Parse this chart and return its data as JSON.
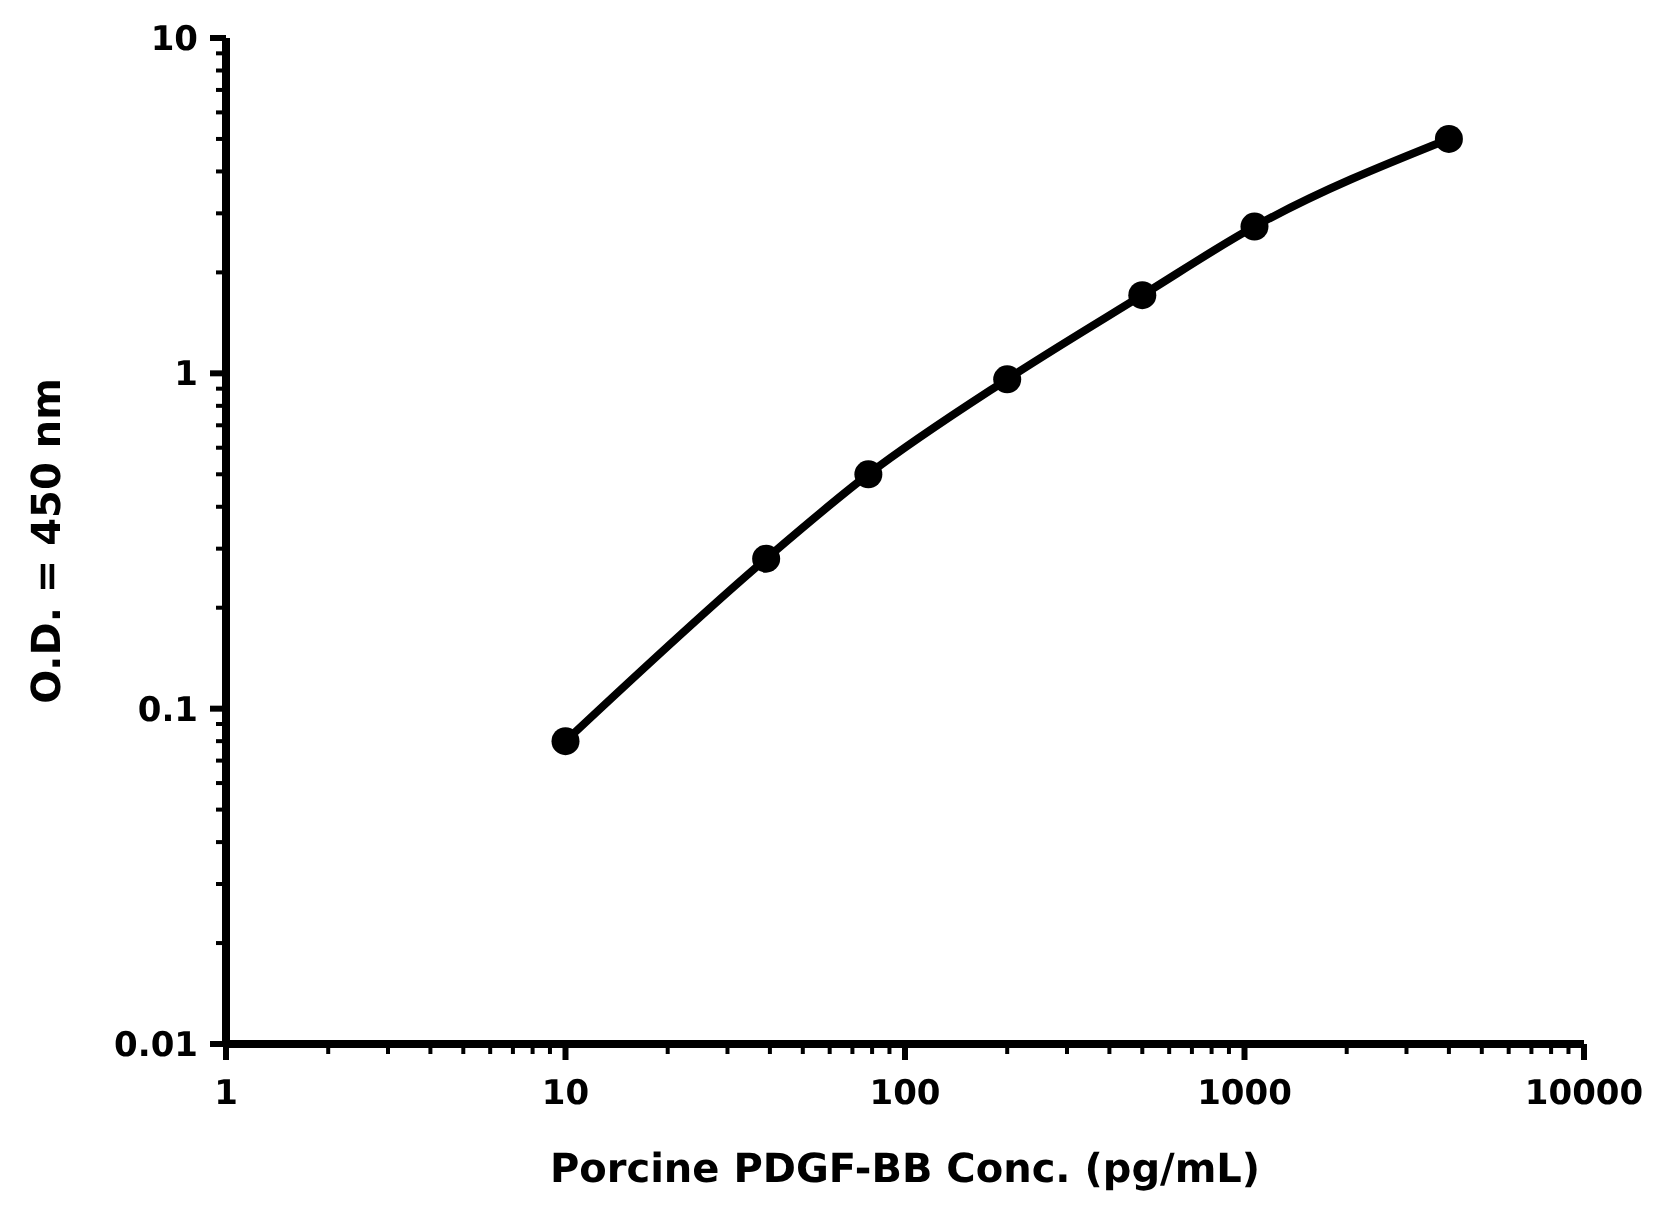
{
  "chart_data": {
    "type": "line",
    "xlabel": "Porcine PDGF-BB Conc. (pg/mL)",
    "ylabel": "O.D. = 450 nm",
    "x": [
      10,
      39,
      78,
      200,
      500,
      1070,
      4000
    ],
    "series": [
      {
        "color": "#000000",
        "values": [
          0.08,
          0.28,
          0.5,
          0.96,
          1.71,
          2.74,
          5.0
        ]
      }
    ],
    "log": "xy",
    "marker": "circle",
    "line_style": "solid",
    "xlim": [
      1,
      10000
    ],
    "xticks": [
      1,
      {
        "value": 2,
        "label": null
      },
      {
        "value": 3,
        "label": null
      },
      {
        "value": 4,
        "label": null
      },
      {
        "value": 5,
        "label": null
      },
      {
        "value": 6,
        "label": null
      },
      {
        "value": 7,
        "label": null
      },
      {
        "value": 8,
        "label": null
      },
      {
        "value": 9,
        "label": null
      },
      10,
      {
        "value": 20,
        "label": null
      },
      {
        "value": 30,
        "label": null
      },
      {
        "value": 40,
        "label": null
      },
      {
        "value": 50,
        "label": null
      },
      {
        "value": 60,
        "label": null
      },
      {
        "value": 70,
        "label": null
      },
      {
        "value": 80,
        "label": null
      },
      {
        "value": 90,
        "label": null
      },
      100,
      {
        "value": 200,
        "label": null
      },
      {
        "value": 300,
        "label": null
      },
      {
        "value": 400,
        "label": null
      },
      {
        "value": 500,
        "label": null
      },
      {
        "value": 600,
        "label": null
      },
      {
        "value": 700,
        "label": null
      },
      {
        "value": 800,
        "label": null
      },
      {
        "value": 900,
        "label": null
      },
      1000,
      {
        "value": 2000,
        "label": null
      },
      {
        "value": 3000,
        "label": null
      },
      {
        "value": 4000,
        "label": null
      },
      {
        "value": 5000,
        "label": null
      },
      {
        "value": 6000,
        "label": null
      },
      {
        "value": 7000,
        "label": null
      },
      {
        "value": 8000,
        "label": null
      },
      {
        "value": 9000,
        "label": null
      },
      10000
    ],
    "ylim": [
      0.01,
      10
    ],
    "yticks": [
      0.01,
      {
        "value": 0.02,
        "label": null
      },
      {
        "value": 0.03,
        "label": null
      },
      {
        "value": 0.04,
        "label": null
      },
      {
        "value": 0.05,
        "label": null
      },
      {
        "value": 0.06,
        "label": null
      },
      {
        "value": 0.07,
        "label": null
      },
      {
        "value": 0.08,
        "label": null
      },
      {
        "value": 0.09,
        "label": null
      },
      0.1,
      {
        "value": 0.2,
        "label": null
      },
      {
        "value": 0.3,
        "label": null
      },
      {
        "value": 0.4,
        "label": null
      },
      {
        "value": 0.5,
        "label": null
      },
      {
        "value": 0.6,
        "label": null
      },
      {
        "value": 0.7,
        "label": null
      },
      {
        "value": 0.8,
        "label": null
      },
      {
        "value": 0.9,
        "label": null
      },
      1,
      {
        "value": 2,
        "label": null
      },
      {
        "value": 3,
        "label": null
      },
      {
        "value": 4,
        "label": null
      },
      {
        "value": 5,
        "label": null
      },
      {
        "value": 6,
        "label": null
      },
      {
        "value": 7,
        "label": null
      },
      {
        "value": 8,
        "label": null
      },
      {
        "value": 9,
        "label": null
      },
      10
    ]
  }
}
